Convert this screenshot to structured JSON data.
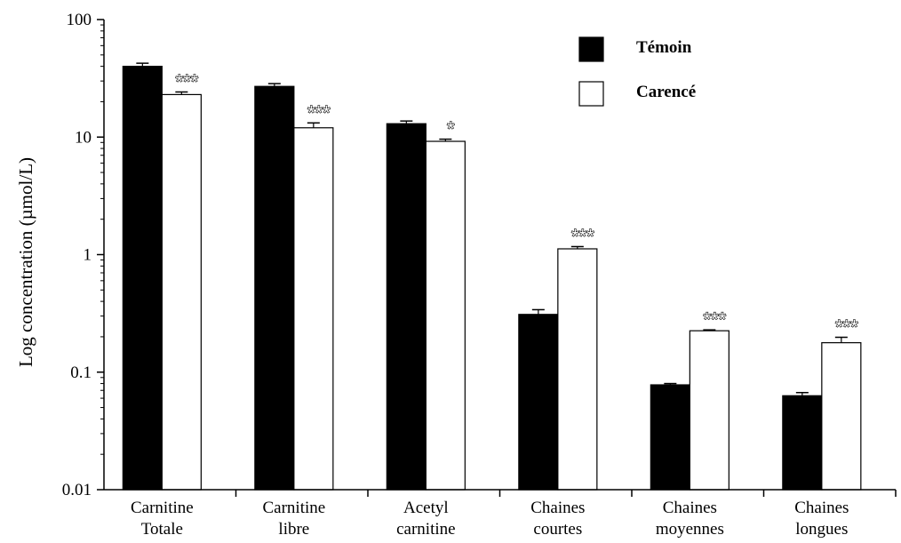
{
  "chart_data": {
    "type": "bar",
    "yscale": "log",
    "ylabel": "Log concentration (µmol/L)",
    "ylim": [
      0.01,
      100
    ],
    "yticks": [
      0.01,
      0.1,
      1,
      10,
      100
    ],
    "ytick_labels": [
      "0.01",
      "0.1",
      "1",
      "10",
      "100"
    ],
    "grid": false,
    "legend_position": "top-right",
    "categories": [
      [
        "Carnitine",
        "Totale"
      ],
      [
        "Carnitine",
        "libre"
      ],
      [
        "Acetyl",
        "carnitine"
      ],
      [
        "Chaines",
        "courtes"
      ],
      [
        "Chaines",
        "moyennes"
      ],
      [
        "Chaines",
        "longues"
      ]
    ],
    "series": [
      {
        "name": "Témoin",
        "color": "#000000",
        "values": [
          40,
          27,
          13,
          0.31,
          0.078,
          0.063
        ],
        "errors": [
          2.5,
          1.5,
          0.7,
          0.03,
          0.002,
          0.004
        ]
      },
      {
        "name": "Carencé",
        "color": "#ffffff",
        "values": [
          23,
          12,
          9.2,
          1.12,
          0.225,
          0.178
        ],
        "errors": [
          1.2,
          1.2,
          0.4,
          0.05,
          0.004,
          0.02
        ]
      }
    ],
    "annotations": [
      "***",
      "***",
      "*",
      "***",
      "***",
      "***"
    ]
  }
}
